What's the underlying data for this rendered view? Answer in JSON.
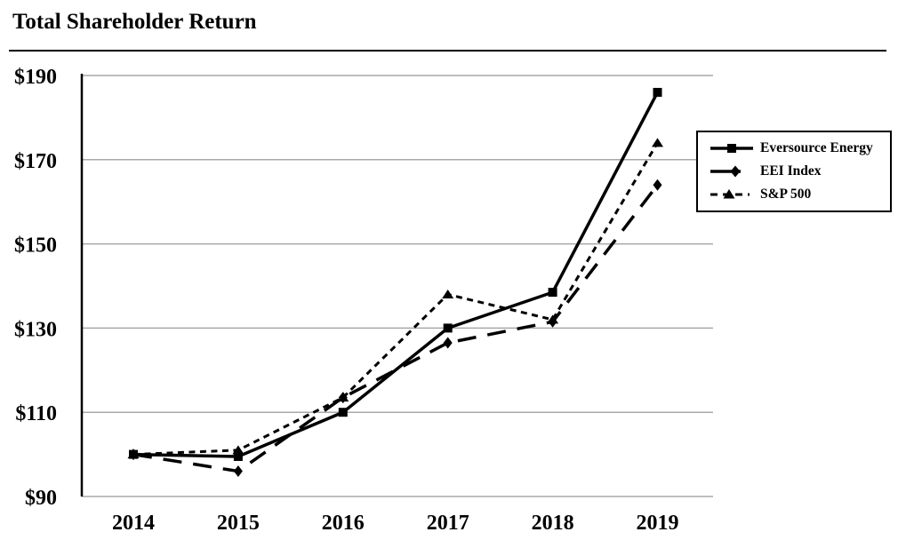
{
  "page": {
    "title": "Total Shareholder Return"
  },
  "chart_data": {
    "type": "line",
    "title": "Total Shareholder Return",
    "categories": [
      "2014",
      "2015",
      "2016",
      "2017",
      "2018",
      "2019"
    ],
    "x": [
      2014,
      2015,
      2016,
      2017,
      2018,
      2019
    ],
    "series": [
      {
        "name": "Eversource Energy",
        "values": [
          100,
          99.5,
          110,
          130,
          138.5,
          186
        ],
        "line_style": "solid",
        "marker": "square"
      },
      {
        "name": "EEI Index",
        "values": [
          100,
          96,
          113.5,
          126.5,
          131.5,
          164
        ],
        "line_style": "long-dash",
        "marker": "diamond"
      },
      {
        "name": "S&P 500",
        "values": [
          100,
          101,
          113.5,
          138,
          132,
          174
        ],
        "line_style": "short-dash",
        "marker": "triangle"
      }
    ],
    "y_axis": {
      "tick_labels": [
        "$190",
        "$170",
        "$150",
        "$130",
        "$110",
        "$90"
      ],
      "tick_values": [
        190,
        170,
        150,
        130,
        110,
        90
      ],
      "ylim": [
        90,
        190
      ]
    },
    "grid": "horizontal",
    "legend_position": "right",
    "colors": {
      "series": "#000000",
      "gridline": "#a8a8a8",
      "axis": "#000000",
      "legend_border": "#000000",
      "background": "#ffffff"
    }
  }
}
